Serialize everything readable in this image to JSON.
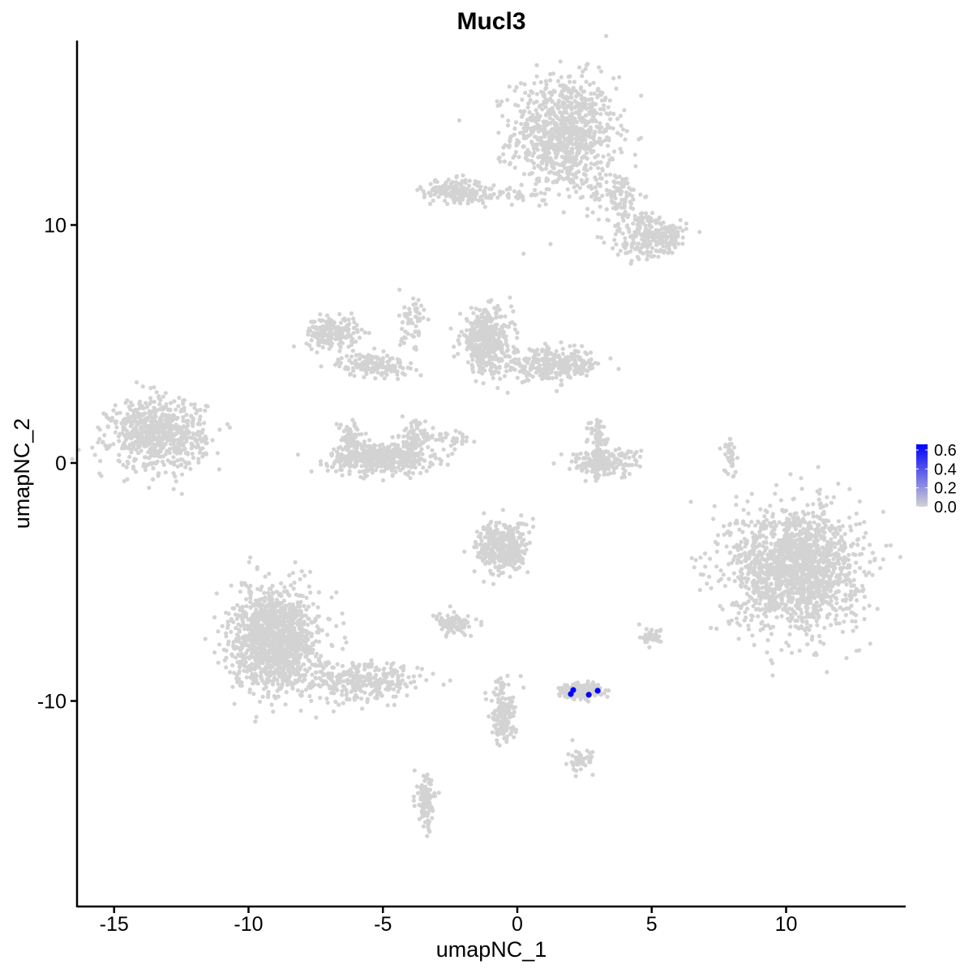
{
  "chart_data": {
    "type": "scatter",
    "title": "Mucl3",
    "xlabel": "umapNC_1",
    "ylabel": "umapNC_2",
    "xlim": [
      -16.4,
      14.5
    ],
    "ylim": [
      -18.6,
      17.75
    ],
    "x_ticks": [
      -15,
      -10,
      -5,
      0,
      5,
      10
    ],
    "y_ticks": [
      -10,
      0,
      10
    ],
    "grid": false,
    "background_point_color": "#d3d3d3",
    "high_color": "#0000ff",
    "legend": {
      "position": "right",
      "min": 0.0,
      "max": 0.66,
      "ticks": [
        "0.0",
        "0.2",
        "0.4",
        "0.6"
      ]
    },
    "background_clusters_expression": 0.0,
    "background_clusters": [
      {
        "cx": 1.72,
        "cy": 13.83,
        "sx": 1.2,
        "sy": 1.5,
        "n": 900
      },
      {
        "cx": 3.69,
        "cy": 11.28,
        "sx": 0.6,
        "sy": 0.6,
        "n": 100
      },
      {
        "cx": 4.59,
        "cy": 9.57,
        "sx": 0.75,
        "sy": 0.7,
        "n": 150
      },
      {
        "cx": 5.5,
        "cy": 9.57,
        "sx": 0.5,
        "sy": 0.4,
        "n": 120
      },
      {
        "cx": -1.15,
        "cy": 11.28,
        "sx": 1.5,
        "sy": 0.2,
        "n": 80
      },
      {
        "cx": -2.36,
        "cy": 11.45,
        "sx": 0.7,
        "sy": 0.3,
        "n": 150
      },
      {
        "cx": -6.89,
        "cy": 5.49,
        "sx": 0.6,
        "sy": 0.4,
        "n": 200
      },
      {
        "cx": -5.38,
        "cy": 4.12,
        "sx": 0.8,
        "sy": 0.3,
        "n": 150
      },
      {
        "cx": -3.9,
        "cy": 5.8,
        "sx": 0.3,
        "sy": 1.0,
        "n": 60
      },
      {
        "cx": -5.08,
        "cy": 0.2,
        "sx": 1.2,
        "sy": 0.4,
        "n": 450
      },
      {
        "cx": -6.2,
        "cy": 1.0,
        "sx": 0.3,
        "sy": 0.5,
        "n": 80
      },
      {
        "cx": -3.9,
        "cy": 1.0,
        "sx": 0.3,
        "sy": 0.5,
        "n": 80
      },
      {
        "cx": -1.15,
        "cy": 5.14,
        "sx": 0.6,
        "sy": 0.8,
        "n": 400
      },
      {
        "cx": 1.27,
        "cy": 4.12,
        "sx": 1.2,
        "sy": 0.4,
        "n": 300
      },
      {
        "cx": -13.38,
        "cy": 1.23,
        "sx": 1.1,
        "sy": 0.9,
        "n": 700
      },
      {
        "cx": 10.33,
        "cy": -4.4,
        "sx": 1.5,
        "sy": 1.6,
        "n": 1600
      },
      {
        "cx": 3.23,
        "cy": 0.03,
        "sx": 0.8,
        "sy": 0.35,
        "n": 200
      },
      {
        "cx": 3.0,
        "cy": 1.0,
        "sx": 0.25,
        "sy": 0.5,
        "n": 50
      },
      {
        "cx": -0.54,
        "cy": -3.54,
        "sx": 0.6,
        "sy": 0.7,
        "n": 350
      },
      {
        "cx": -2.36,
        "cy": -6.78,
        "sx": 0.4,
        "sy": 0.25,
        "n": 100
      },
      {
        "cx": -9.0,
        "cy": -7.46,
        "sx": 1.0,
        "sy": 1.3,
        "n": 1300
      },
      {
        "cx": -5.68,
        "cy": -9.17,
        "sx": 1.3,
        "sy": 0.5,
        "n": 300
      },
      {
        "cx": 2.33,
        "cy": -9.55,
        "sx": 0.5,
        "sy": 0.2,
        "n": 200
      },
      {
        "cx": -0.54,
        "cy": -10.53,
        "sx": 0.3,
        "sy": 0.8,
        "n": 150
      },
      {
        "cx": 2.33,
        "cy": -12.57,
        "sx": 0.3,
        "sy": 0.3,
        "n": 50
      },
      {
        "cx": -3.41,
        "cy": -14.28,
        "sx": 0.2,
        "sy": 0.7,
        "n": 100
      },
      {
        "cx": 7.92,
        "cy": 0.2,
        "sx": 0.15,
        "sy": 0.5,
        "n": 40
      },
      {
        "cx": 5.05,
        "cy": -7.29,
        "sx": 0.3,
        "sy": 0.2,
        "n": 40
      },
      {
        "cx": -2.5,
        "cy": 1.0,
        "sx": 0.8,
        "sy": 0.2,
        "n": 40
      }
    ],
    "expressing_points": [
      {
        "x": 2.08,
        "y": -9.54,
        "value": 0.66
      },
      {
        "x": 1.99,
        "y": -9.71,
        "value": 0.66
      },
      {
        "x": 2.66,
        "y": -9.74,
        "value": 0.66
      },
      {
        "x": 2.99,
        "y": -9.57,
        "value": 0.66
      }
    ]
  }
}
